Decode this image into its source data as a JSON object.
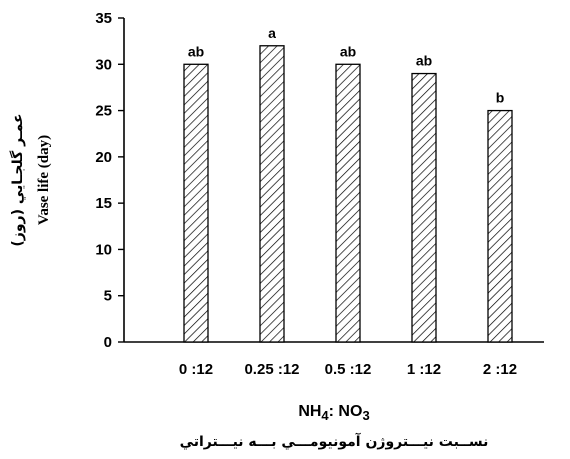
{
  "chart_data": {
    "type": "bar",
    "categories": [
      "0 :12",
      "0.25 :12",
      "0.5 :12",
      "1 :12",
      "2 :12"
    ],
    "values": [
      30,
      32,
      30,
      29,
      25
    ],
    "significance_letters": [
      "ab",
      "a",
      "ab",
      "ab",
      "b"
    ],
    "ylabel_fa": "عمـر گلجـايي (روز)",
    "ylabel_en": "Vase life (day)",
    "xlabel_en_main": "NH",
    "xlabel_en_sub1": "4",
    "xlabel_en_mid": ": NO",
    "xlabel_en_sub2": "3",
    "xlabel_fa": "نســبت نيـــتروژن آمونيومـــي بـــه نيـــتراتي",
    "ylim": [
      0,
      35
    ],
    "yticks": [
      "0",
      "5",
      "10",
      "15",
      "20",
      "25",
      "30",
      "35"
    ],
    "bar_fill": "hatched",
    "grid": false,
    "legend": "none"
  }
}
